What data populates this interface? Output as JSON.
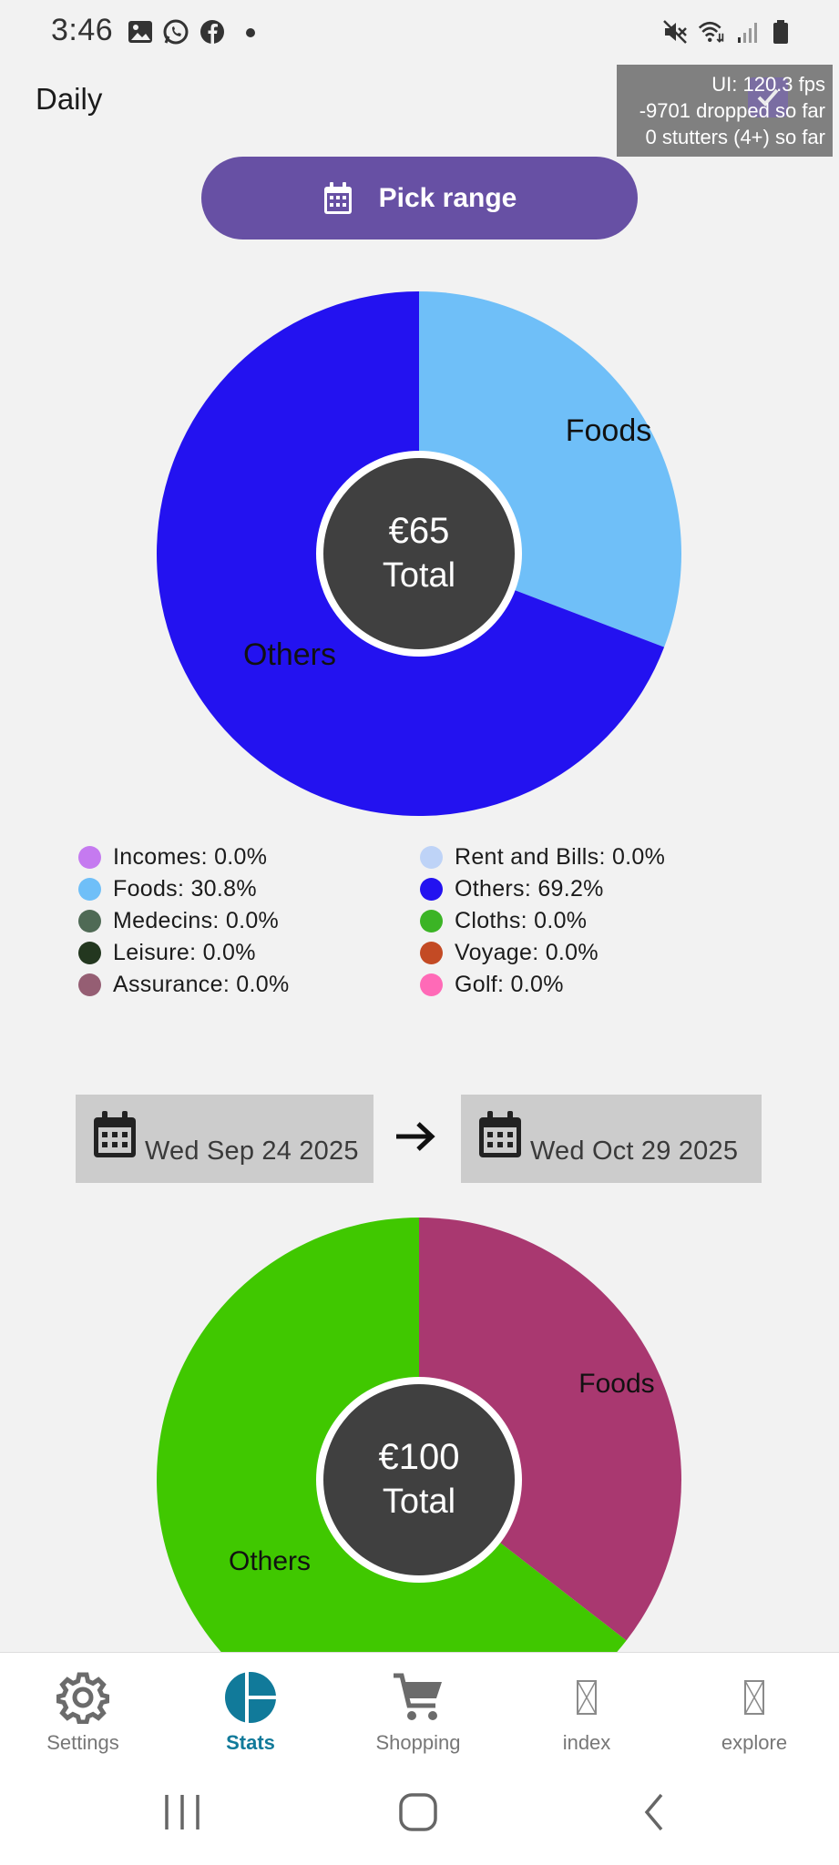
{
  "status_bar": {
    "time": "3:46",
    "left_icons": [
      "image-icon",
      "whatsapp-icon",
      "facebook-icon",
      "dot-icon"
    ],
    "right_icons": [
      "mute-icon",
      "wifi-icon",
      "signal-icon",
      "battery-icon"
    ]
  },
  "fps_overlay": {
    "line1": "UI: 120.3 fps",
    "line2": "-9701 dropped so far",
    "line3": "0 stutters (4+) so far"
  },
  "header": {
    "title": "Daily"
  },
  "pick_range": {
    "label": "Pick range",
    "icon": "calendar-icon"
  },
  "chart_data": [
    {
      "type": "pie",
      "categories": [
        "Foods",
        "Others"
      ],
      "values": [
        30.8,
        69.2
      ],
      "colors": [
        "#6fbff8",
        "#2312f0"
      ],
      "slice_labels": [
        "Foods",
        "Others"
      ],
      "center": {
        "amount": "€65",
        "caption": "Total"
      }
    },
    {
      "type": "pie",
      "categories": [
        "Foods",
        "Others"
      ],
      "values": [
        35.5,
        64.5
      ],
      "colors": [
        "#a93870",
        "#40c800"
      ],
      "slice_labels": [
        "Foods",
        "Others"
      ],
      "center": {
        "amount": "€100",
        "caption": "Total"
      }
    }
  ],
  "legend": [
    {
      "label": "Incomes: 0.0%",
      "color": "#c57af0"
    },
    {
      "label": "Rent and Bills: 0.0%",
      "color": "#bed3f7"
    },
    {
      "label": "Foods: 30.8%",
      "color": "#6fbff8"
    },
    {
      "label": "Others: 69.2%",
      "color": "#2312f0"
    },
    {
      "label": "Medecins: 0.0%",
      "color": "#4f6a55"
    },
    {
      "label": "Cloths: 0.0%",
      "color": "#3bb425"
    },
    {
      "label": "Leisure: 0.0%",
      "color": "#23371f"
    },
    {
      "label": "Voyage: 0.0%",
      "color": "#c34a24"
    },
    {
      "label": "Assurance: 0.0%",
      "color": "#955e73"
    },
    {
      "label": "Golf: 0.0%",
      "color": "#ff6ab7"
    }
  ],
  "date_range": {
    "start": "Wed Sep 24 2025",
    "end": "Wed Oct 29 2025",
    "arrow": "arrow-right-icon"
  },
  "bottom_nav": [
    {
      "label": "Settings",
      "icon": "gear-icon",
      "active": false
    },
    {
      "label": "Stats",
      "icon": "pie-chart-icon",
      "active": true
    },
    {
      "label": "Shopping",
      "icon": "cart-icon",
      "active": false
    },
    {
      "label": "index",
      "icon": "missing-glyph-icon",
      "active": false
    },
    {
      "label": "explore",
      "icon": "missing-glyph-icon",
      "active": false
    }
  ],
  "colors": {
    "accent": "#6750a4",
    "active_tab": "#117a9a",
    "center_disc": "#404040"
  }
}
